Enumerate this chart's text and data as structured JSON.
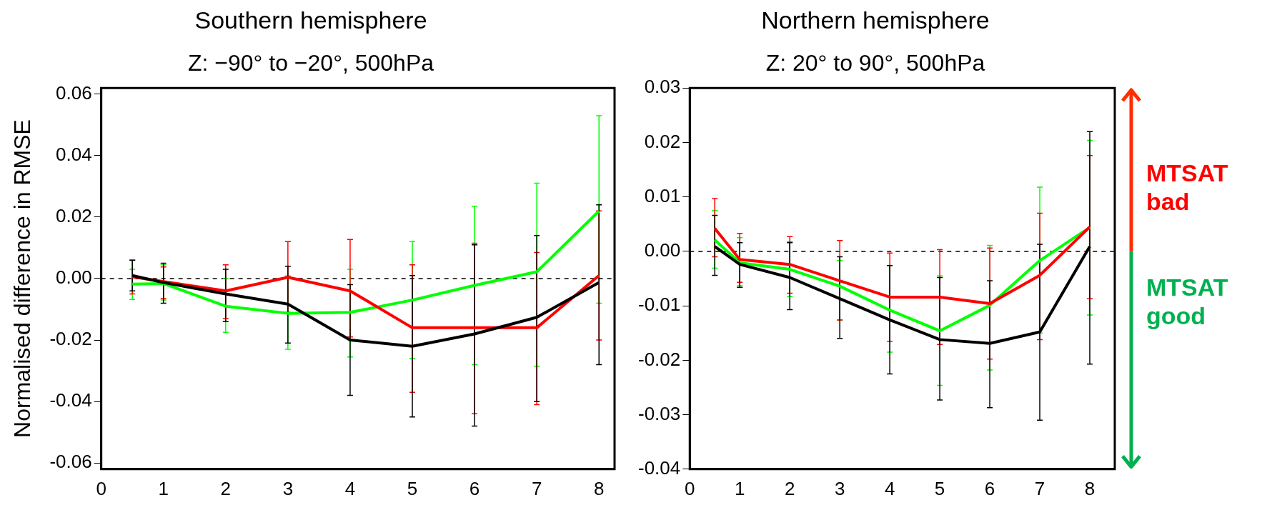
{
  "chart_data": [
    {
      "type": "line",
      "title": "Southern hemisphere",
      "subtitle": "Z: −90° to −20°, 500hPa",
      "ylabel": "Normalised difference in RMSE",
      "x": [
        0.5,
        1,
        2,
        3,
        4,
        5,
        6,
        7,
        8
      ],
      "series": [
        {
          "color": "#000000",
          "values": [
            0.001,
            -0.0013,
            -0.005,
            -0.0083,
            -0.02,
            -0.022,
            -0.018,
            -0.0126,
            -0.0013
          ],
          "errors": [
            [
              -0.004,
              0.006
            ],
            [
              -0.008,
              0.005
            ],
            [
              -0.014,
              0.003
            ],
            [
              -0.021,
              0.004
            ],
            [
              -0.038,
              -0.002
            ],
            [
              -0.045,
              0.001
            ],
            [
              -0.048,
              0.011
            ],
            [
              -0.04,
              0.014
            ],
            [
              -0.028,
              0.024
            ]
          ]
        },
        {
          "color": "#ff0000",
          "values": [
            0.0006,
            -0.001,
            -0.004,
            0.0004,
            -0.004,
            -0.016,
            -0.016,
            -0.016,
            0.001
          ],
          "errors": [
            [
              -0.005,
              0.006
            ],
            [
              -0.0065,
              0.0038
            ],
            [
              -0.013,
              0.0045
            ],
            [
              -0.011,
              0.012
            ],
            [
              -0.019,
              0.0127
            ],
            [
              -0.037,
              0.0045
            ],
            [
              -0.044,
              0.0115
            ],
            [
              -0.041,
              0.0085
            ],
            [
              -0.02,
              0.022
            ]
          ]
        },
        {
          "color": "#00ff00",
          "values": [
            -0.0018,
            -0.0016,
            -0.009,
            -0.0113,
            -0.011,
            -0.007,
            -0.0022,
            0.0022,
            0.022
          ],
          "errors": [
            [
              -0.0068,
              0.003
            ],
            [
              -0.007,
              0.0045
            ],
            [
              -0.0175,
              0
            ],
            [
              -0.023,
              0.0009
            ],
            [
              -0.0255,
              0.003
            ],
            [
              -0.026,
              0.012
            ],
            [
              -0.028,
              0.0235
            ],
            [
              -0.0285,
              0.031
            ],
            [
              -0.008,
              0.053
            ]
          ]
        }
      ],
      "xlim": [
        0,
        8.25
      ],
      "xticks": [
        0,
        1,
        2,
        3,
        4,
        5,
        6,
        7,
        8
      ],
      "ylim": [
        -0.062,
        0.062
      ],
      "yticks": [
        -0.06,
        -0.04,
        -0.02,
        {
          "value": 0,
          "label": "0.00"
        },
        0.02,
        0.04,
        0.06
      ],
      "ref_lines": [
        {
          "axis": "y",
          "value": 0,
          "color": "#000000",
          "line_style": "dashed"
        }
      ],
      "grid": false,
      "legend": false,
      "marker": "none",
      "line_style": "solid"
    },
    {
      "type": "line",
      "title": "Northern hemisphere",
      "subtitle": "Z: 20° to 90°, 500hPa",
      "x": [
        0.5,
        1,
        2,
        3,
        4,
        5,
        6,
        7,
        8
      ],
      "series": [
        {
          "color": "#000000",
          "values": [
            0.0009,
            -0.0024,
            -0.0048,
            -0.0087,
            -0.0126,
            -0.0162,
            -0.0169,
            -0.0148,
            0.0009
          ],
          "errors": [
            [
              -0.0044,
              0.0066
            ],
            [
              -0.0066,
              0.0016
            ],
            [
              -0.0107,
              0.0016
            ],
            [
              -0.016,
              -0.001
            ],
            [
              -0.0225,
              -0.0026
            ],
            [
              -0.0273,
              -0.0048
            ],
            [
              -0.0287,
              -0.0054
            ],
            [
              -0.031,
              0.0013
            ],
            [
              -0.0207,
              0.022
            ]
          ]
        },
        {
          "color": "#ff0000",
          "values": [
            0.0042,
            -0.0015,
            -0.0024,
            -0.0054,
            -0.0084,
            -0.0084,
            -0.0096,
            -0.0044,
            0.0045
          ],
          "errors": [
            [
              -0.001,
              0.0097
            ],
            [
              -0.0057,
              0.0033
            ],
            [
              -0.0077,
              0.0027
            ],
            [
              -0.0126,
              0.002
            ],
            [
              -0.0165,
              -0.0003
            ],
            [
              -0.0171,
              0.0003
            ],
            [
              -0.0198,
              0.0006
            ],
            [
              -0.0162,
              0.007
            ],
            [
              -0.0087,
              0.0176
            ]
          ]
        },
        {
          "color": "#00ff00",
          "values": [
            0.0021,
            -0.0021,
            -0.0033,
            -0.0064,
            -0.0108,
            -0.0146,
            -0.0099,
            -0.0017,
            0.0044
          ],
          "errors": [
            [
              -0.0031,
              0.0075
            ],
            [
              -0.0063,
              0.0025
            ],
            [
              -0.0083,
              0.0018
            ],
            [
              -0.0126,
              -0.0017
            ],
            [
              -0.0185,
              -0.0026
            ],
            [
              -0.0246,
              -0.0045
            ],
            [
              -0.0218,
              0.0011
            ],
            [
              -0.015,
              0.0118
            ],
            [
              -0.0117,
              0.0204
            ]
          ]
        }
      ],
      "xlim": [
        0,
        8.5
      ],
      "xticks": [
        0,
        1,
        2,
        3,
        4,
        5,
        6,
        7,
        8
      ],
      "ylim": [
        -0.04,
        0.03
      ],
      "yticks": [
        -0.04,
        -0.03,
        -0.02,
        -0.01,
        {
          "value": 0,
          "label": "0.00"
        },
        0.01,
        0.02,
        0.03
      ],
      "ref_lines": [
        {
          "axis": "y",
          "value": 0,
          "color": "#000000",
          "line_style": "dashed"
        }
      ],
      "annotations": [
        "MTSAT bad",
        "MTSAT good"
      ],
      "grid": false,
      "legend": false,
      "marker": "none",
      "line_style": "solid"
    }
  ]
}
